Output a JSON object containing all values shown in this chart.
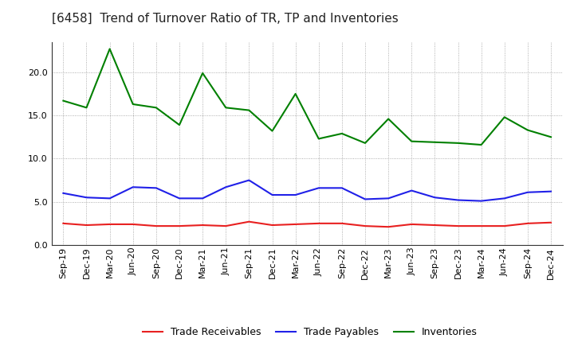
{
  "title": "[6458]  Trend of Turnover Ratio of TR, TP and Inventories",
  "x_labels": [
    "Sep-19",
    "Dec-19",
    "Mar-20",
    "Jun-20",
    "Sep-20",
    "Dec-20",
    "Mar-21",
    "Jun-21",
    "Sep-21",
    "Dec-21",
    "Mar-22",
    "Jun-22",
    "Sep-22",
    "Dec-22",
    "Mar-23",
    "Jun-23",
    "Sep-23",
    "Dec-23",
    "Mar-24",
    "Jun-24",
    "Sep-24",
    "Dec-24"
  ],
  "trade_receivables": [
    2.5,
    2.3,
    2.4,
    2.4,
    2.2,
    2.2,
    2.3,
    2.2,
    2.7,
    2.3,
    2.4,
    2.5,
    2.5,
    2.2,
    2.1,
    2.4,
    2.3,
    2.2,
    2.2,
    2.2,
    2.5,
    2.6
  ],
  "trade_payables": [
    6.0,
    5.5,
    5.4,
    6.7,
    6.6,
    5.4,
    5.4,
    6.7,
    7.5,
    5.8,
    5.8,
    6.6,
    6.6,
    5.3,
    5.4,
    6.3,
    5.5,
    5.2,
    5.1,
    5.4,
    6.1,
    6.2
  ],
  "inventories": [
    16.7,
    15.9,
    22.7,
    16.3,
    15.9,
    13.9,
    19.9,
    15.9,
    15.6,
    13.2,
    17.5,
    12.3,
    12.9,
    11.8,
    14.6,
    12.0,
    11.9,
    11.8,
    11.6,
    14.8,
    13.3,
    12.5
  ],
  "color_tr": "#e82020",
  "color_tp": "#2020e8",
  "color_inv": "#008000",
  "ylim": [
    0,
    23.5
  ],
  "yticks": [
    0.0,
    5.0,
    10.0,
    15.0,
    20.0
  ],
  "legend_labels": [
    "Trade Receivables",
    "Trade Payables",
    "Inventories"
  ],
  "background_color": "#ffffff",
  "grid_color": "#999999",
  "title_fontsize": 11,
  "axis_fontsize": 8,
  "legend_fontsize": 9,
  "line_width": 1.5
}
